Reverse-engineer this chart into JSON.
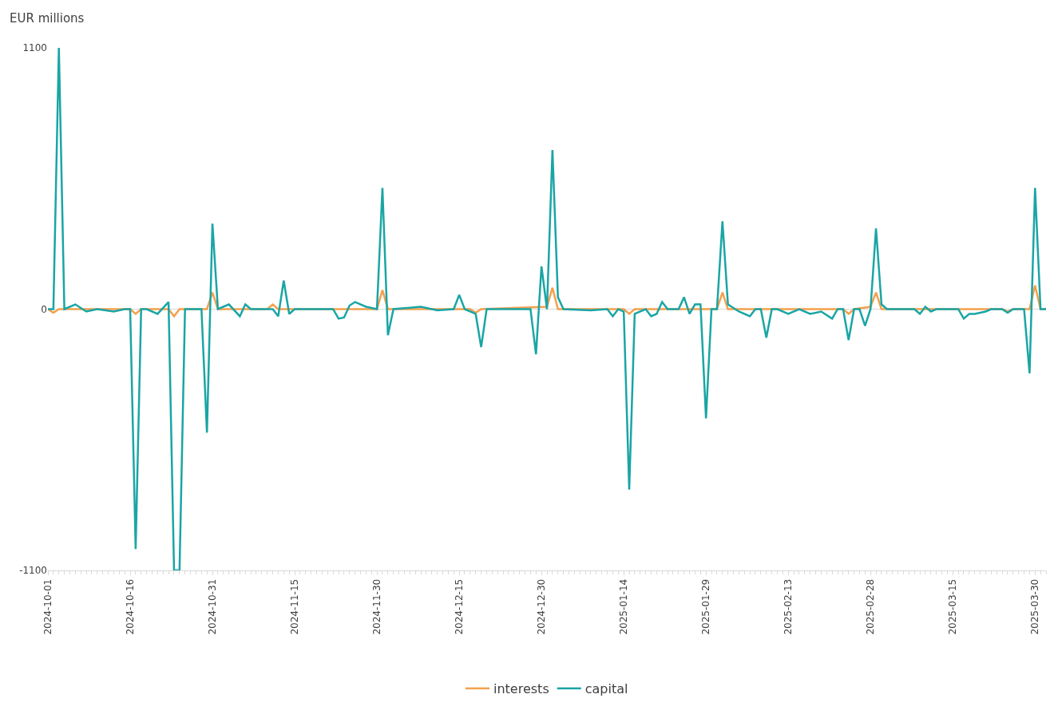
{
  "chart_data": {
    "type": "line",
    "ylabel": "EUR millions",
    "xlim": [
      "2024-10-01",
      "2025-04-01"
    ],
    "ylim": [
      -1100,
      1100
    ],
    "yticks": [
      -1100,
      0,
      1100
    ],
    "xticks": [
      "2024-10-01",
      "2024-10-16",
      "2024-10-31",
      "2024-11-15",
      "2024-11-30",
      "2024-12-15",
      "2024-12-30",
      "2025-01-14",
      "2025-01-29",
      "2025-02-13",
      "2025-02-28",
      "2025-03-15",
      "2025-03-30"
    ],
    "grid": "y",
    "legend": "bottom",
    "marker": "none",
    "line_style": "solid",
    "series": [
      {
        "name": "interests",
        "color": "#f4a04c",
        "x": [
          "2024-10-01",
          "2024-10-02",
          "2024-10-03",
          "2024-10-16",
          "2024-10-17",
          "2024-10-18",
          "2024-10-23",
          "2024-10-24",
          "2024-10-25",
          "2024-10-30",
          "2024-10-31",
          "2024-11-01",
          "2024-11-10",
          "2024-11-11",
          "2024-11-12",
          "2024-11-30",
          "2024-12-01",
          "2024-12-02",
          "2024-12-17",
          "2024-12-18",
          "2024-12-19",
          "2024-12-31",
          "2025-01-01",
          "2025-01-02",
          "2025-01-14",
          "2025-01-15",
          "2025-01-16",
          "2025-01-31",
          "2025-02-01",
          "2025-02-02",
          "2025-02-23",
          "2025-02-24",
          "2025-02-25",
          "2025-02-28",
          "2025-03-01",
          "2025-03-02",
          "2025-03-24",
          "2025-03-25",
          "2025-03-26",
          "2025-03-29",
          "2025-03-30",
          "2025-03-31",
          "2025-04-01"
        ],
        "values": [
          0,
          -15,
          0,
          0,
          -20,
          0,
          0,
          -30,
          0,
          0,
          70,
          0,
          0,
          20,
          0,
          0,
          80,
          0,
          0,
          -15,
          0,
          10,
          90,
          0,
          0,
          -20,
          0,
          0,
          70,
          0,
          0,
          -20,
          0,
          10,
          70,
          0,
          0,
          -10,
          0,
          0,
          100,
          0,
          0
        ]
      },
      {
        "name": "capital",
        "color": "#1aa5a5",
        "x": [
          "2024-10-01",
          "2024-10-02",
          "2024-10-03",
          "2024-10-04",
          "2024-10-06",
          "2024-10-08",
          "2024-10-10",
          "2024-10-13",
          "2024-10-15",
          "2024-10-16",
          "2024-10-17",
          "2024-10-18",
          "2024-10-19",
          "2024-10-21",
          "2024-10-23",
          "2024-10-24",
          "2024-10-25",
          "2024-10-26",
          "2024-10-29",
          "2024-10-30",
          "2024-10-31",
          "2024-11-01",
          "2024-11-03",
          "2024-11-05",
          "2024-11-06",
          "2024-11-07",
          "2024-11-11",
          "2024-11-12",
          "2024-11-13",
          "2024-11-14",
          "2024-11-15",
          "2024-11-22",
          "2024-11-23",
          "2024-11-24",
          "2024-11-25",
          "2024-11-26",
          "2024-11-28",
          "2024-11-30",
          "2024-12-01",
          "2024-12-02",
          "2024-12-03",
          "2024-12-08",
          "2024-12-11",
          "2024-12-14",
          "2024-12-15",
          "2024-12-16",
          "2024-12-18",
          "2024-12-19",
          "2024-12-20",
          "2024-12-28",
          "2024-12-29",
          "2024-12-30",
          "2024-12-31",
          "2025-01-01",
          "2025-01-02",
          "2025-01-03",
          "2025-01-08",
          "2025-01-11",
          "2025-01-12",
          "2025-01-13",
          "2025-01-14",
          "2025-01-15",
          "2025-01-16",
          "2025-01-18",
          "2025-01-19",
          "2025-01-20",
          "2025-01-21",
          "2025-01-22",
          "2025-01-24",
          "2025-01-25",
          "2025-01-26",
          "2025-01-27",
          "2025-01-28",
          "2025-01-29",
          "2025-01-30",
          "2025-01-31",
          "2025-02-01",
          "2025-02-02",
          "2025-02-04",
          "2025-02-06",
          "2025-02-07",
          "2025-02-08",
          "2025-02-09",
          "2025-02-10",
          "2025-02-11",
          "2025-02-13",
          "2025-02-15",
          "2025-02-17",
          "2025-02-19",
          "2025-02-21",
          "2025-02-22",
          "2025-02-23",
          "2025-02-24",
          "2025-02-25",
          "2025-02-26",
          "2025-02-27",
          "2025-02-28",
          "2025-03-01",
          "2025-03-02",
          "2025-03-03",
          "2025-03-08",
          "2025-03-09",
          "2025-03-10",
          "2025-03-11",
          "2025-03-12",
          "2025-03-16",
          "2025-03-17",
          "2025-03-18",
          "2025-03-19",
          "2025-03-21",
          "2025-03-22",
          "2025-03-24",
          "2025-03-25",
          "2025-03-26",
          "2025-03-28",
          "2025-03-29",
          "2025-03-30",
          "2025-03-31",
          "2025-04-01"
        ],
        "values": [
          0,
          0,
          1100,
          0,
          20,
          -10,
          0,
          -10,
          0,
          0,
          -1010,
          0,
          0,
          -20,
          30,
          -1100,
          -1100,
          0,
          0,
          -520,
          360,
          0,
          20,
          -30,
          20,
          0,
          0,
          -30,
          120,
          -20,
          0,
          0,
          -40,
          -35,
          15,
          30,
          10,
          0,
          510,
          -110,
          0,
          10,
          -5,
          0,
          60,
          0,
          -20,
          -160,
          0,
          0,
          -190,
          180,
          0,
          670,
          50,
          0,
          -5,
          0,
          -30,
          0,
          -10,
          -760,
          -20,
          0,
          -30,
          -20,
          30,
          0,
          0,
          50,
          -20,
          20,
          20,
          -460,
          0,
          0,
          370,
          20,
          -10,
          -30,
          0,
          0,
          -120,
          0,
          0,
          -20,
          0,
          -20,
          -10,
          -40,
          0,
          0,
          -130,
          0,
          0,
          -70,
          0,
          340,
          20,
          0,
          0,
          -20,
          10,
          -10,
          0,
          0,
          -40,
          -20,
          -20,
          -10,
          0,
          0,
          -15,
          0,
          0,
          -270,
          510,
          0,
          0
        ]
      }
    ]
  }
}
